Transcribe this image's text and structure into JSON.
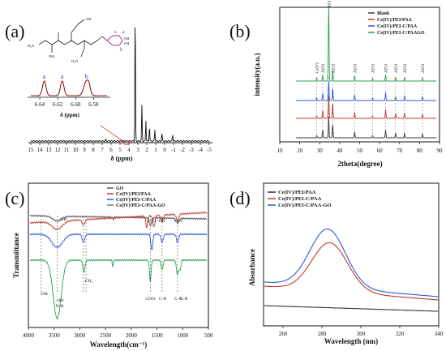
{
  "panel_labels": {
    "a": "(a)",
    "b": "(b)",
    "c": "(c)",
    "d": "(d)"
  },
  "chart_data": [
    {
      "panel": "a",
      "type": "line",
      "xlabel": "δ (ppm)",
      "x_ticks": [
        "15",
        "14",
        "13",
        "12",
        "11",
        "10",
        "9",
        "8",
        "7",
        "6",
        "5",
        "4",
        "3",
        "2",
        "1",
        "0",
        "-1",
        "-2",
        "-3",
        "-4",
        "-5"
      ],
      "xlim": [
        15,
        -5
      ],
      "peaks": [
        {
          "x": 3.3,
          "y": 1.0
        },
        {
          "x": 2.55,
          "y": 0.27
        },
        {
          "x": 2.1,
          "y": 0.16
        },
        {
          "x": 1.7,
          "y": 0.11
        },
        {
          "x": 1.1,
          "y": 0.09
        },
        {
          "x": 0.3,
          "y": 0.06
        },
        {
          "x": -0.9,
          "y": 0.05
        },
        {
          "x": 6.6,
          "y": 0.012
        }
      ],
      "structure_labels": {
        "nh": "NH",
        "h2n_left": "H₂N",
        "nh2": "NH₂",
        "h2n_bottom": "H₂N",
        "a1": "a",
        "a2": "a",
        "b": "b",
        "oh1": "OH",
        "oh2": "OH"
      },
      "inset": {
        "x_ticks": [
          "6.64",
          "6.62",
          "6.60",
          "6.58"
        ],
        "xlim": [
          6.65,
          6.565
        ],
        "xlabel": "δ (ppm)",
        "peak_labels": [
          "a",
          "a",
          "b"
        ],
        "peaks": [
          6.635,
          6.615,
          6.588
        ]
      }
    },
    {
      "panel": "b",
      "type": "line",
      "xlabel": "2theta(degree)",
      "ylabel": "intensity(a.u.)",
      "x_ticks": [
        "10",
        "20",
        "30",
        "40",
        "50",
        "60",
        "70",
        "80",
        "90"
      ],
      "xlim": [
        10,
        90
      ],
      "series": [
        {
          "name": "Blank",
          "color": "#3a3a3a"
        },
        {
          "name": "Ce(IV)/PEI/PAA",
          "color": "#c0392b"
        },
        {
          "name": "Ce(IV)/PEI-C/PAA",
          "color": "#2a5bd7"
        },
        {
          "name": "Ce(IV)/PEI-C/PAAGO",
          "color": "#2e9e4f"
        }
      ],
      "peak_positions": [
        28.5,
        31.5,
        34.5,
        36.5,
        47.5,
        56.5,
        63.0,
        68.0,
        72.5,
        81.5
      ],
      "annotations": [
        "Ce(V)",
        "AZ31",
        "AZ31",
        "AZ31",
        "AZ31",
        "AZ31",
        "AZ31",
        "AZ31",
        "AZ31",
        "AZ31"
      ]
    },
    {
      "panel": "c",
      "type": "line",
      "xlabel": "Wavelength(cm⁻¹)",
      "ylabel": "Transmittance",
      "x_ticks": [
        "4000",
        "3500",
        "3000",
        "2500",
        "2000",
        "1500",
        "1000",
        "500"
      ],
      "xlim": [
        4000,
        500
      ],
      "series": [
        {
          "name": "GO",
          "color": "#555555"
        },
        {
          "name": "Ce(IV)/PEI/PAA",
          "color": "#c0392b"
        },
        {
          "name": "Ce(IV)/PEI-C/PAA",
          "color": "#2a5bd7"
        },
        {
          "name": "Ce(IV)/PEI-C/PAA-GO",
          "color": "#2e9e4f"
        }
      ],
      "annotations": [
        "-OH",
        "C=O",
        "-OH",
        "C-O",
        "-OH",
        "CH₂",
        "COO-",
        "C-N",
        "C-O",
        "C-H",
        "-OH",
        "N-H"
      ]
    },
    {
      "panel": "d",
      "type": "line",
      "xlabel": "Wavelength (nm)",
      "ylabel": "Absorbance",
      "x_ticks": [
        "260",
        "280",
        "300",
        "320",
        "340"
      ],
      "xlim": [
        250,
        340
      ],
      "series": [
        {
          "name": "Ce(IV)/PEI/PAA",
          "color": "#333333",
          "peak_nm": null
        },
        {
          "name": "Ce(IV)/PEI-C/PAA",
          "color": "#c0392b",
          "peak_nm": 284
        },
        {
          "name": "Ce(IV)/PEI-C/PAA-GO",
          "color": "#2a5bd7",
          "peak_nm": 283
        }
      ]
    }
  ]
}
